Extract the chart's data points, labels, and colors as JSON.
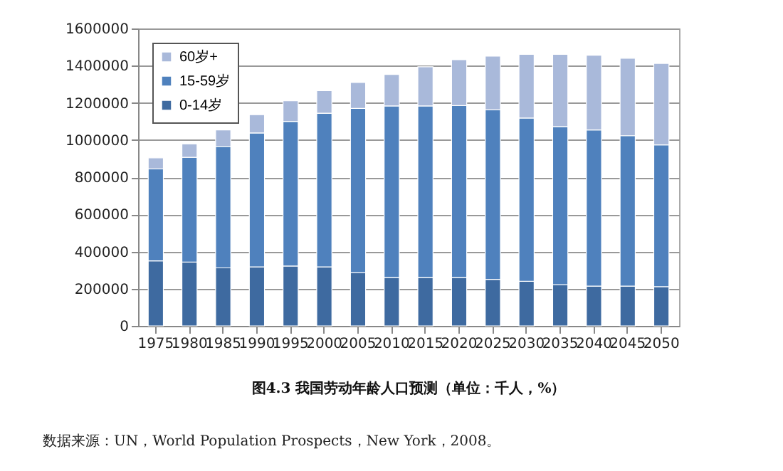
{
  "chart_data": {
    "type": "bar",
    "title": "图4.3 我国劳动年龄人口预测（单位：千人，%）",
    "annotations": [
      "数据来源：UN，World Population Prospects，New York，2008。"
    ],
    "categories": [
      "1975",
      "1980",
      "1985",
      "1990",
      "1995",
      "2000",
      "2005",
      "2010",
      "2015",
      "2020",
      "2025",
      "2030",
      "2035",
      "2040",
      "2045",
      "2050"
    ],
    "stacked": true,
    "ylim": [
      0,
      1600000
    ],
    "yticks": [
      0,
      200000,
      400000,
      600000,
      800000,
      1000000,
      1200000,
      1400000,
      1600000
    ],
    "grid": "y",
    "legend": "top left",
    "series": [
      {
        "name": "0-14岁",
        "color": "#3e6aa0",
        "values": [
          350000,
          343000,
          312000,
          317000,
          322000,
          317000,
          286000,
          260000,
          260000,
          260000,
          250000,
          240000,
          222000,
          214000,
          214000,
          211000
        ]
      },
      {
        "name": "15-59岁",
        "color": "#4f81bd",
        "values": [
          495000,
          564000,
          654000,
          721000,
          778000,
          827000,
          884000,
          923000,
          923000,
          925000,
          912000,
          878000,
          850000,
          840000,
          809000,
          763000
        ]
      },
      {
        "name": "60岁+",
        "color": "#a9b9da",
        "values": [
          59000,
          72000,
          88000,
          98000,
          111000,
          121000,
          139000,
          170000,
          211000,
          247000,
          289000,
          343000,
          389000,
          402000,
          417000,
          438000
        ]
      }
    ]
  }
}
